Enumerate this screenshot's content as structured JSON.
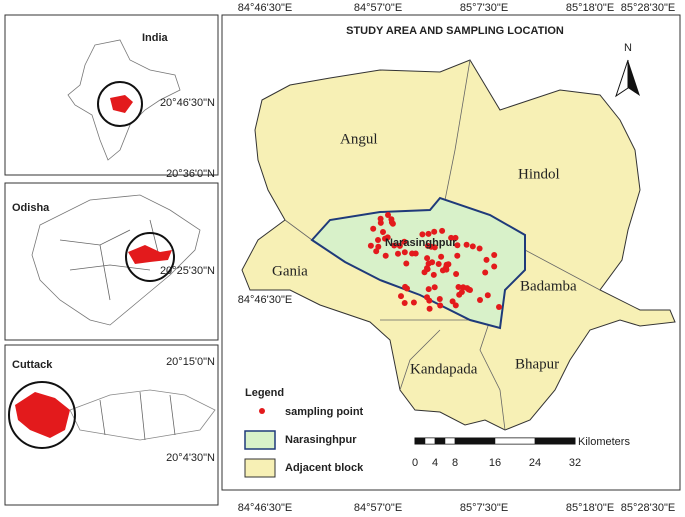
{
  "title": "STUDY AREA AND SAMPLING LOCATION",
  "insets": [
    {
      "label": "India"
    },
    {
      "label": "Odisha"
    },
    {
      "label": "Cuttack"
    }
  ],
  "lat_labels": [
    "20°46'30\"N",
    "20°36'0\"N",
    "20°25'30\"N",
    "20°15'0\"N",
    "20°4'30\"N"
  ],
  "lon_labels": {
    "top": [
      "84°46'30\"E",
      "84°57'0\"E",
      "85°7'30\"E",
      "85°18'0\"E",
      "85°28'30\"E"
    ],
    "inner": "84°46'30\"E",
    "bottom": [
      "84°46'30\"E",
      "84°57'0\"E",
      "85°7'30\"E",
      "85°18'0\"E",
      "85°28'30\"E"
    ]
  },
  "north": "N",
  "blocks": [
    "Angul",
    "Hindol",
    "Gania",
    "Narasinghpur",
    "Badamba",
    "Kandapada",
    "Bhapur"
  ],
  "legend": {
    "title": "Legend",
    "items": [
      "sampling point",
      "Narasinghpur",
      "Adjacent block"
    ]
  },
  "scale_bar": {
    "ticks": [
      "0",
      "4",
      "8",
      "16",
      "24",
      "32"
    ],
    "unit": "Kilometers"
  }
}
